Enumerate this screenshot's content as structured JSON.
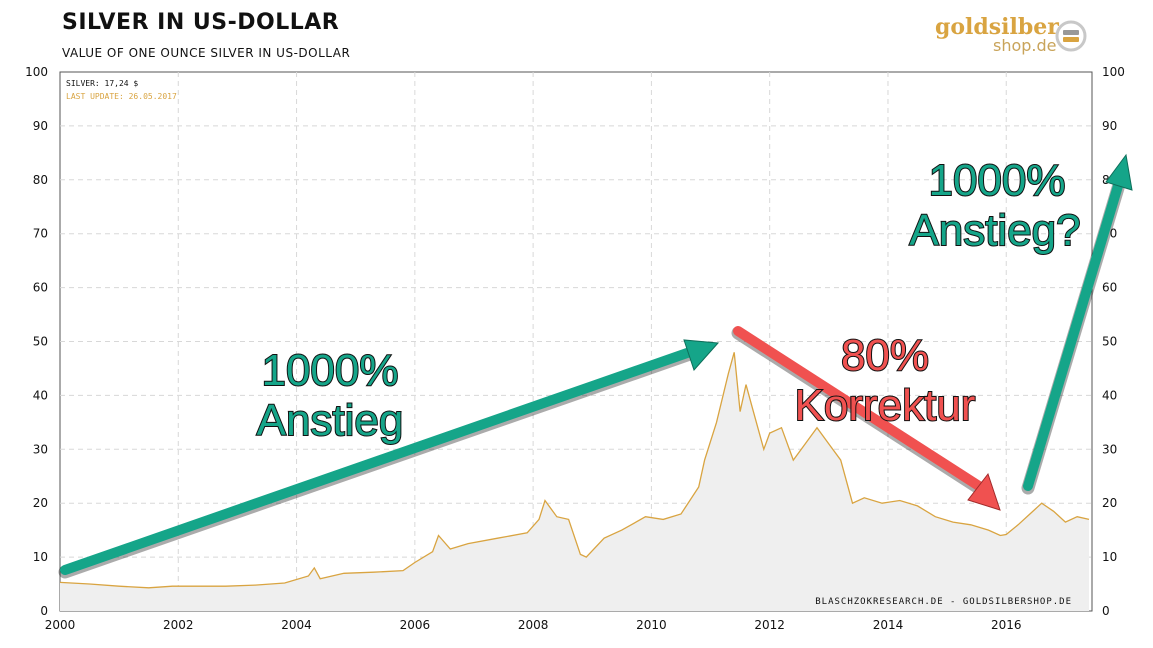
{
  "title": "SILVER IN US-DOLLAR",
  "subtitle": "VALUE OF ONE OUNCE SILVER IN US-DOLLAR",
  "logo": {
    "top": "goldsilber",
    "bottom": "shop.de"
  },
  "info": {
    "price": "SILVER: 17,24 $",
    "update": "LAST UPDATE: 26.05.2017"
  },
  "credit": "BLASCHZOKRESEARCH.DE - GOLDSILBERSHOP.DE",
  "annotations": {
    "rise1_line1": "1000%",
    "rise1_line2": "Anstieg",
    "fall_line1": "80%",
    "fall_line2": "Korrektur",
    "rise2_line1": "1000%",
    "rise2_line2": "Anstieg?"
  },
  "colors": {
    "line": "#d9a441",
    "fill": "#efefef",
    "green": "#15a589",
    "red": "#f05150",
    "grid": "#d8d8d8"
  },
  "chart_data": {
    "type": "area",
    "title": "SILVER IN US-DOLLAR",
    "xlabel": "",
    "ylabel": "",
    "xlim": [
      2000,
      2017.45
    ],
    "ylim": [
      0,
      100
    ],
    "x_ticks": [
      "2000",
      "2002",
      "2004",
      "2006",
      "2008",
      "2010",
      "2012",
      "2014",
      "2016"
    ],
    "y_ticks": [
      "0",
      "10",
      "20",
      "30",
      "40",
      "50",
      "60",
      "70",
      "80",
      "90",
      "100"
    ],
    "grid": true,
    "series": [
      {
        "name": "SILVER",
        "x": [
          2000.0,
          2000.5,
          2001.0,
          2001.5,
          2001.9,
          2002.3,
          2002.8,
          2003.3,
          2003.8,
          2004.2,
          2004.3,
          2004.4,
          2004.8,
          2005.3,
          2005.8,
          2006.0,
          2006.3,
          2006.4,
          2006.6,
          2006.9,
          2007.4,
          2007.9,
          2008.1,
          2008.2,
          2008.4,
          2008.6,
          2008.8,
          2008.9,
          2009.2,
          2009.5,
          2009.9,
          2010.2,
          2010.5,
          2010.8,
          2010.9,
          2011.1,
          2011.3,
          2011.4,
          2011.5,
          2011.6,
          2011.7,
          2011.9,
          2012.0,
          2012.2,
          2012.4,
          2012.6,
          2012.8,
          2013.0,
          2013.2,
          2013.4,
          2013.6,
          2013.9,
          2014.2,
          2014.5,
          2014.8,
          2015.1,
          2015.4,
          2015.7,
          2015.9,
          2016.0,
          2016.2,
          2016.4,
          2016.6,
          2016.8,
          2017.0,
          2017.2,
          2017.4
        ],
        "y": [
          5.3,
          5.0,
          4.6,
          4.3,
          4.6,
          4.6,
          4.6,
          4.8,
          5.2,
          6.5,
          8.0,
          6.0,
          7.0,
          7.2,
          7.5,
          9.0,
          11.0,
          14.0,
          11.5,
          12.5,
          13.5,
          14.5,
          17.0,
          20.5,
          17.5,
          17.0,
          10.5,
          10.0,
          13.5,
          15.0,
          17.5,
          17.0,
          18.0,
          23.0,
          28.0,
          35.0,
          44.0,
          48.0,
          37.0,
          42.0,
          38.0,
          30.0,
          33.0,
          34.0,
          28.0,
          31.0,
          34.0,
          31.0,
          28.0,
          20.0,
          21.0,
          20.0,
          20.5,
          19.5,
          17.5,
          16.5,
          16.0,
          15.0,
          14.0,
          14.2,
          16.0,
          18.0,
          20.0,
          18.5,
          16.5,
          17.5,
          17.0
        ]
      }
    ]
  }
}
